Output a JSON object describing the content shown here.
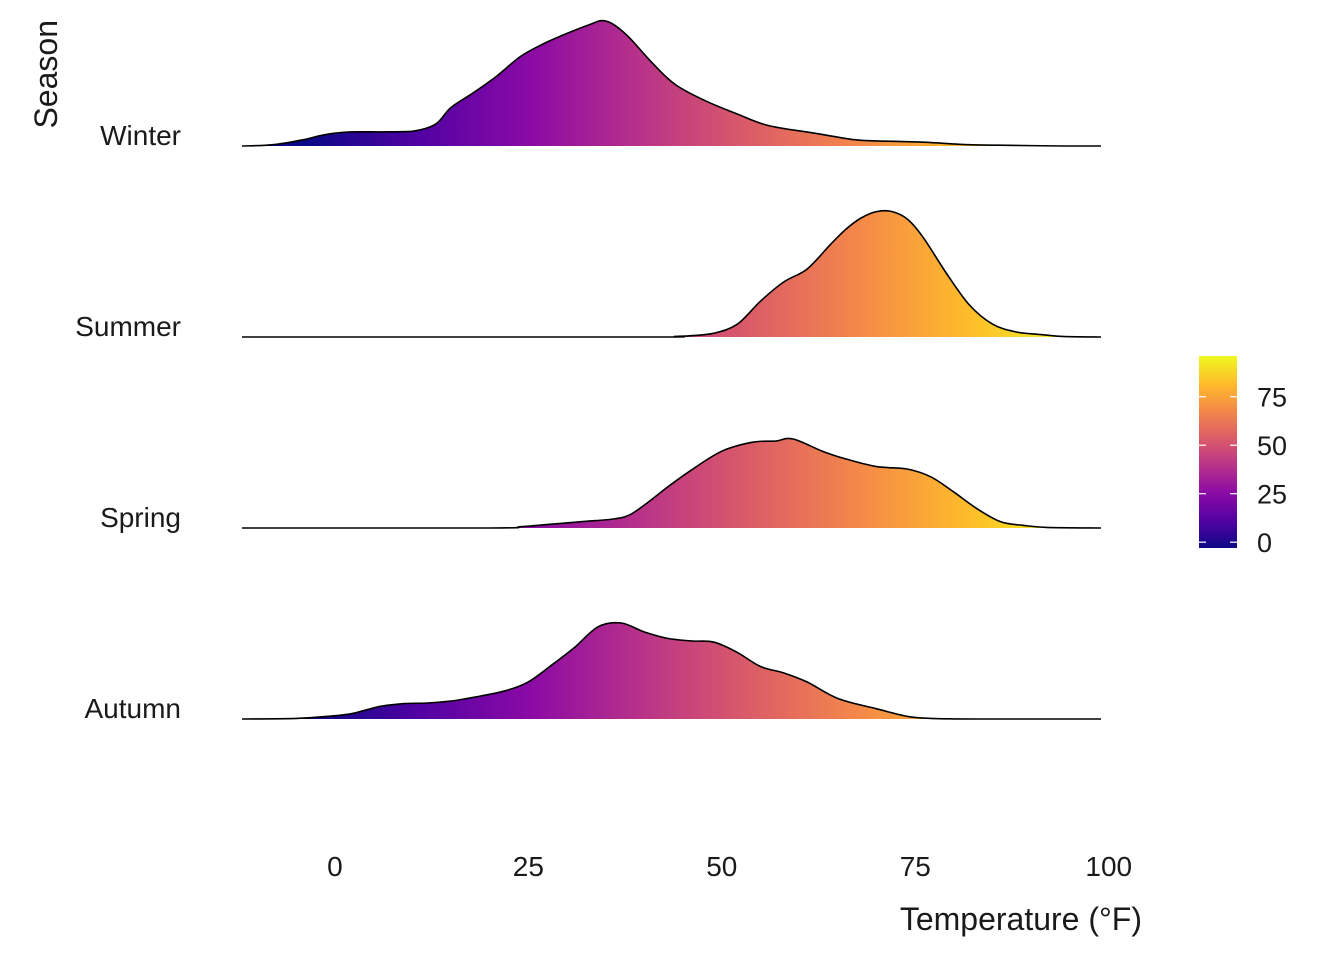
{
  "chart_data": {
    "type": "ridgeline",
    "xlabel": "Temperature (°F)",
    "ylabel": "Season",
    "xlim": [
      -12,
      99
    ],
    "x_ticks": [
      0,
      25,
      50,
      75,
      100
    ],
    "grid": false,
    "legend": {
      "placement": "right",
      "type": "colorbar",
      "colormap": "plasma",
      "range": [
        -3,
        96
      ],
      "ticks": [
        0,
        25,
        50,
        75
      ],
      "stops": [
        "#0d0887",
        "#5302a3",
        "#8b0aa5",
        "#b83289",
        "#db5c68",
        "#f48849",
        "#febc2a",
        "#f0f921"
      ]
    },
    "categories": [
      "Winter",
      "Summer",
      "Spring",
      "Autumn"
    ],
    "series": [
      {
        "name": "Winter",
        "x": [
          -12,
          -8,
          -4,
          -2,
          0,
          2,
          6,
          10,
          13,
          15,
          18,
          21,
          24,
          27,
          30,
          33,
          34.5,
          36,
          38,
          41,
          44,
          48,
          52,
          56,
          62,
          67,
          70,
          76,
          82,
          88,
          94,
          99
        ],
        "y": [
          0,
          0.01,
          0.05,
          0.08,
          0.1,
          0.11,
          0.11,
          0.115,
          0.17,
          0.3,
          0.42,
          0.55,
          0.7,
          0.8,
          0.88,
          0.95,
          0.98,
          0.95,
          0.85,
          0.65,
          0.48,
          0.35,
          0.25,
          0.16,
          0.1,
          0.05,
          0.04,
          0.03,
          0.01,
          0.005,
          0,
          0
        ]
      },
      {
        "name": "Summer",
        "x": [
          -12,
          40,
          44,
          46,
          49,
          52,
          55,
          58,
          61,
          64,
          66,
          68,
          70,
          72,
          74,
          76,
          79,
          82,
          85,
          88,
          91,
          94,
          99
        ],
        "y": [
          0,
          0,
          0.005,
          0.01,
          0.03,
          0.1,
          0.28,
          0.43,
          0.53,
          0.72,
          0.84,
          0.93,
          0.98,
          0.98,
          0.92,
          0.78,
          0.5,
          0.25,
          0.1,
          0.04,
          0.02,
          0.005,
          0
        ]
      },
      {
        "name": "Spring",
        "x": [
          -12,
          20,
          24,
          28,
          32,
          36,
          38,
          40,
          43,
          46,
          50,
          54,
          57,
          58.5,
          60,
          63,
          66,
          70,
          74,
          77,
          80,
          83,
          86,
          89,
          92,
          99
        ],
        "y": [
          0,
          0,
          0.01,
          0.03,
          0.05,
          0.07,
          0.1,
          0.18,
          0.32,
          0.45,
          0.6,
          0.67,
          0.68,
          0.7,
          0.68,
          0.6,
          0.54,
          0.48,
          0.46,
          0.4,
          0.28,
          0.15,
          0.05,
          0.02,
          0.005,
          0
        ]
      },
      {
        "name": "Autumn",
        "x": [
          -12,
          -5,
          -1,
          2,
          4,
          6,
          9,
          12,
          15,
          18,
          22,
          25,
          28,
          31,
          34,
          37,
          40,
          43,
          46,
          49,
          52,
          55,
          58,
          61,
          65,
          70,
          74,
          77,
          80,
          83,
          86,
          99
        ],
        "y": [
          0,
          0.005,
          0.02,
          0.04,
          0.07,
          0.1,
          0.12,
          0.125,
          0.14,
          0.17,
          0.22,
          0.29,
          0.42,
          0.56,
          0.72,
          0.75,
          0.68,
          0.63,
          0.61,
          0.6,
          0.52,
          0.41,
          0.36,
          0.29,
          0.16,
          0.08,
          0.02,
          0.005,
          0.001,
          0,
          0,
          0
        ]
      }
    ]
  }
}
